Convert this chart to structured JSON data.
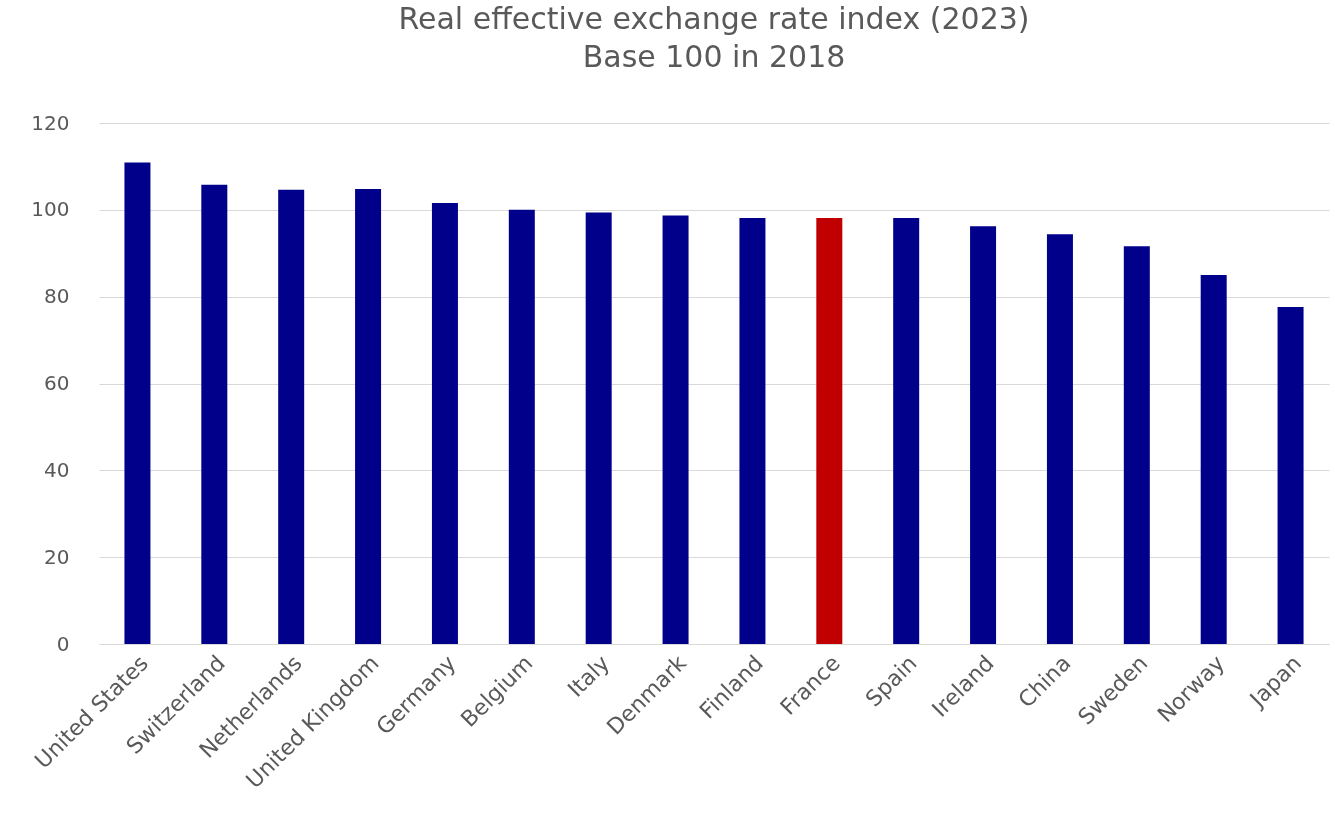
{
  "chart_data": {
    "type": "bar",
    "title": "Real effective exchange rate index (2023)",
    "subtitle": "Base 100 in 2018",
    "categories": [
      "United States",
      "Switzerland",
      "Netherlands",
      "United Kingdom",
      "Germany",
      "Belgium",
      "Italy",
      "Denmark",
      "Finland",
      "France",
      "Spain",
      "Ireland",
      "China",
      "Sweden",
      "Norway",
      "Japan"
    ],
    "values": [
      110.9,
      105.8,
      104.6,
      104.8,
      101.6,
      100.0,
      99.4,
      98.7,
      98.1,
      98.1,
      98.1,
      96.2,
      94.4,
      91.6,
      85.0,
      77.6
    ],
    "colors": [
      "#00008b",
      "#00008b",
      "#00008b",
      "#00008b",
      "#00008b",
      "#00008b",
      "#00008b",
      "#00008b",
      "#00008b",
      "#c00000",
      "#00008b",
      "#00008b",
      "#00008b",
      "#00008b",
      "#00008b",
      "#00008b"
    ],
    "ylim": [
      0,
      120
    ],
    "yticks": [
      0,
      20,
      40,
      60,
      80,
      100,
      120
    ],
    "grid": "y",
    "legend": false
  }
}
